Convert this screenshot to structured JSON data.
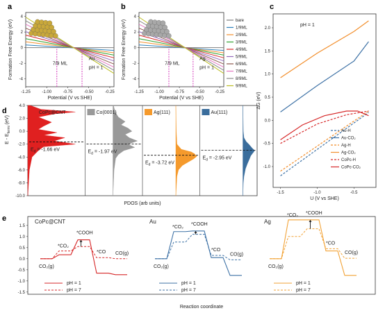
{
  "panels": {
    "a": {
      "letter": "a",
      "metal": "Au",
      "ph": "pH = 1",
      "ml": "7/9 ML"
    },
    "b": {
      "letter": "b",
      "metal": "Ag",
      "ph": "pH = 1",
      "ml": "7/9 ML"
    },
    "c": {
      "letter": "c",
      "ph": "pH = 1"
    },
    "d": {
      "letter": "d"
    },
    "e": {
      "letter": "e"
    }
  },
  "colors": {
    "au_sphere": "#c9a83a",
    "ag_sphere": "#a8a8a8",
    "dashed_marker": "#d63fbd",
    "d_cnt": "#e02020",
    "d_co": "#999999",
    "d_ag": "#f59a2c",
    "d_au": "#3a6d9c",
    "e_cnt": "#d62728",
    "e_au": "#3e72a6",
    "e_ag": "#f2a235"
  },
  "chart_data": [
    {
      "id": "a",
      "type": "line",
      "xlabel": "Potential (V vs SHE)",
      "ylabel": "Formation Free Energy (eV)",
      "xlim": [
        -1.25,
        -0.2
      ],
      "ylim": [
        -5,
        4.5
      ],
      "xticks": [
        "-1.25",
        "-1.00",
        "-0.75",
        "-0.50",
        "-0.25"
      ],
      "yticks": [
        "-4",
        "-2",
        "0",
        "2",
        "4"
      ],
      "dashed_x": [
        -0.88,
        -0.58
      ],
      "series": [
        {
          "name": "bare",
          "color": "#7f7f7f",
          "y": [
            0,
            0
          ]
        },
        {
          "name": "1/9ML",
          "color": "#2a7fba",
          "y": [
            0.35,
            -0.35
          ]
        },
        {
          "name": "2/9ML",
          "color": "#f28e2b",
          "y": [
            0.75,
            -0.65
          ]
        },
        {
          "name": "3/9ML",
          "color": "#2ca02c",
          "y": [
            1.15,
            -0.95
          ]
        },
        {
          "name": "4/9ML",
          "color": "#d62728",
          "y": [
            1.6,
            -1.3
          ]
        },
        {
          "name": "5/9ML",
          "color": "#9467bd",
          "y": [
            2.05,
            -1.7
          ]
        },
        {
          "name": "6/9ML",
          "color": "#8c564b",
          "y": [
            2.5,
            -2.1
          ]
        },
        {
          "name": "7/9ML",
          "color": "#e377c2",
          "y": [
            3.0,
            -2.5
          ]
        },
        {
          "name": "8/9ML",
          "color": "#8a8a8a",
          "y": [
            3.45,
            -2.9
          ]
        },
        {
          "name": "9/9ML",
          "color": "#bcbd22",
          "y": [
            3.9,
            -3.3
          ]
        }
      ]
    },
    {
      "id": "b",
      "type": "line",
      "xlabel": "Potential (V vs SHE)",
      "ylabel": "Formation Free Energy (eV)",
      "xlim": [
        -1.25,
        -0.2
      ],
      "ylim": [
        -5,
        4.5
      ],
      "xticks": [
        "-1.25",
        "-1.00",
        "-0.75",
        "-0.50",
        "-0.25"
      ],
      "yticks": [
        "-4",
        "-2",
        "0",
        "2",
        "4"
      ],
      "dashed_x": [
        -0.88,
        -0.58
      ],
      "legend": [
        "bare",
        "1/9ML",
        "2/9ML",
        "3/9ML",
        "4/9ML",
        "5/9ML",
        "6/9ML",
        "7/9ML",
        "8/9ML",
        "9/9ML"
      ],
      "series": [
        {
          "name": "bare",
          "color": "#7f7f7f",
          "y": [
            0,
            0
          ]
        },
        {
          "name": "1/9ML",
          "color": "#2a7fba",
          "y": [
            0.35,
            -0.35
          ]
        },
        {
          "name": "2/9ML",
          "color": "#f28e2b",
          "y": [
            0.75,
            -0.65
          ]
        },
        {
          "name": "3/9ML",
          "color": "#2ca02c",
          "y": [
            1.15,
            -0.95
          ]
        },
        {
          "name": "4/9ML",
          "color": "#d62728",
          "y": [
            1.6,
            -1.3
          ]
        },
        {
          "name": "5/9ML",
          "color": "#9467bd",
          "y": [
            2.05,
            -1.7
          ]
        },
        {
          "name": "6/9ML",
          "color": "#8c564b",
          "y": [
            2.5,
            -2.1
          ]
        },
        {
          "name": "7/9ML",
          "color": "#e377c2",
          "y": [
            3.0,
            -2.5
          ]
        },
        {
          "name": "8/9ML",
          "color": "#8a8a8a",
          "y": [
            3.45,
            -2.9
          ]
        },
        {
          "name": "9/9ML",
          "color": "#bcbd22",
          "y": [
            3.9,
            -3.3
          ]
        }
      ]
    },
    {
      "id": "c",
      "type": "line",
      "xlabel": "U (V vs SHE)",
      "ylabel": "ΔG (eV)",
      "xlim": [
        -1.6,
        -0.2
      ],
      "ylim": [
        -1.45,
        2.3
      ],
      "xticks": [
        "-1.5",
        "-1.0",
        "-0.5"
      ],
      "xtick_values": [
        -1.5,
        -1.0,
        -0.5
      ],
      "yticks": [
        "-1.0",
        "-0.5",
        "0.0",
        "0.5",
        "1.0",
        "1.5",
        "2.0"
      ],
      "ytick_values": [
        -1.0,
        -0.5,
        0.0,
        0.5,
        1.0,
        1.5,
        2.0
      ],
      "legend": [
        {
          "label": "Au-H",
          "color": "#3e72a6",
          "dash": true
        },
        {
          "label": "Au-CO₂",
          "color": "#3e72a6",
          "dash": false
        },
        {
          "label": "Ag-H",
          "color": "#f28e2b",
          "dash": true
        },
        {
          "label": "Ag-CO₂",
          "color": "#f28e2b",
          "dash": false
        },
        {
          "label": "CoPc-H",
          "color": "#d62728",
          "dash": true
        },
        {
          "label": "CoPc-CO₂",
          "color": "#d62728",
          "dash": false
        }
      ],
      "series": [
        {
          "name": "Au-H",
          "color": "#3e72a6",
          "dash": true,
          "points": [
            [
              -1.5,
              -1.2
            ],
            [
              -0.3,
              0.17
            ]
          ]
        },
        {
          "name": "Au-CO₂",
          "color": "#3e72a6",
          "dash": false,
          "points": [
            [
              -1.5,
              0.18
            ],
            [
              -1.0,
              0.75
            ],
            [
              -0.5,
              1.28
            ],
            [
              -0.3,
              1.7
            ]
          ]
        },
        {
          "name": "Ag-H",
          "color": "#f28e2b",
          "dash": true,
          "points": [
            [
              -1.5,
              -1.1
            ],
            [
              -0.3,
              0.2
            ]
          ]
        },
        {
          "name": "Ag-CO₂",
          "color": "#f28e2b",
          "dash": false,
          "points": [
            [
              -1.5,
              0.92
            ],
            [
              -1.0,
              1.45
            ],
            [
              -0.5,
              1.92
            ],
            [
              -0.3,
              2.15
            ]
          ]
        },
        {
          "name": "CoPc-H",
          "color": "#d62728",
          "dash": true,
          "points": [
            [
              -1.5,
              -0.5
            ],
            [
              -1.0,
              -0.08
            ],
            [
              -0.6,
              0.12
            ],
            [
              -0.3,
              0.2
            ]
          ]
        },
        {
          "name": "CoPc-CO₂",
          "color": "#d62728",
          "dash": false,
          "points": [
            [
              -1.5,
              -0.42
            ],
            [
              -1.2,
              -0.1
            ],
            [
              -0.9,
              0.1
            ],
            [
              -0.6,
              0.2
            ],
            [
              -0.45,
              0.2
            ],
            [
              -0.3,
              0.1
            ]
          ]
        }
      ]
    },
    {
      "id": "d",
      "type": "area",
      "xlabel": "PDOS (arb units)",
      "ylabel": "E - E_fermi (eV)",
      "ylabel_main": "E - E",
      "ylabel_sub": "fermi",
      "ylabel_tail": " (eV)",
      "ylim": [
        -10,
        4
      ],
      "yticks": [
        "4.0",
        "2.0",
        "0.0",
        "-2.0",
        "-4.0",
        "-6.0",
        "-8.0",
        "-10.0"
      ],
      "ytick_values": [
        4,
        2,
        0,
        -2,
        -4,
        -6,
        -8,
        -10
      ],
      "sections": [
        {
          "label": "CoPc@CNT",
          "color": "#e02020",
          "ed_value": -1.66,
          "ed_label_pre": "E",
          "ed_label_sub": "d",
          "ed_label_post": " = -1.66 eV",
          "profile": [
            [
              4,
              0.05
            ],
            [
              3.4,
              0.25
            ],
            [
              3.0,
              0.9
            ],
            [
              2.7,
              0.5
            ],
            [
              2.2,
              0.2
            ],
            [
              1.4,
              0.45
            ],
            [
              0.8,
              0.3
            ],
            [
              0.3,
              0.2
            ],
            [
              -0.2,
              0.55
            ],
            [
              -0.6,
              0.3
            ],
            [
              -1.0,
              0.7
            ],
            [
              -1.5,
              0.5
            ],
            [
              -2.0,
              0.9
            ],
            [
              -2.4,
              0.3
            ],
            [
              -3.0,
              0.2
            ],
            [
              -4.0,
              0.08
            ],
            [
              -6,
              0.03
            ],
            [
              -10,
              0.0
            ]
          ]
        },
        {
          "label": "Co(0001)",
          "color": "#999999",
          "ed_value": -1.97,
          "ed_label_pre": "E",
          "ed_label_sub": "d",
          "ed_label_post": " = -1.97 eV",
          "profile": [
            [
              4,
              0.02
            ],
            [
              3.0,
              0.08
            ],
            [
              2.2,
              0.2
            ],
            [
              1.5,
              0.45
            ],
            [
              1.0,
              0.3
            ],
            [
              0.5,
              0.55
            ],
            [
              0.0,
              0.7
            ],
            [
              -0.5,
              0.45
            ],
            [
              -1.0,
              0.6
            ],
            [
              -1.5,
              0.9
            ],
            [
              -2.0,
              0.55
            ],
            [
              -2.5,
              0.8
            ],
            [
              -3.0,
              0.4
            ],
            [
              -3.6,
              0.2
            ],
            [
              -4.2,
              0.1
            ],
            [
              -6,
              0.04
            ],
            [
              -10,
              0.0
            ]
          ]
        },
        {
          "label": "Ag(111)",
          "color": "#f59a2c",
          "ed_value": -3.72,
          "ed_label_pre": "E",
          "ed_label_sub": "d",
          "ed_label_post": " = -3.72 eV",
          "profile": [
            [
              4,
              0.0
            ],
            [
              0,
              0.02
            ],
            [
              -2.0,
              0.05
            ],
            [
              -2.8,
              0.25
            ],
            [
              -3.2,
              0.7
            ],
            [
              -3.5,
              0.85
            ],
            [
              -3.9,
              0.95
            ],
            [
              -4.3,
              0.8
            ],
            [
              -4.8,
              0.55
            ],
            [
              -5.3,
              0.3
            ],
            [
              -6.0,
              0.12
            ],
            [
              -7.0,
              0.05
            ],
            [
              -10,
              0.0
            ]
          ]
        },
        {
          "label": "Au(111)",
          "color": "#3a6d9c",
          "ed_value": -2.95,
          "ed_label_pre": "E",
          "ed_label_sub": "d",
          "ed_label_post": " = -2.95 eV",
          "profile": [
            [
              4,
              0.0
            ],
            [
              0,
              0.03
            ],
            [
              -1.0,
              0.08
            ],
            [
              -1.6,
              0.25
            ],
            [
              -2.0,
              0.45
            ],
            [
              -2.6,
              0.7
            ],
            [
              -3.0,
              0.9
            ],
            [
              -3.4,
              0.75
            ],
            [
              -3.8,
              0.6
            ],
            [
              -4.3,
              0.5
            ],
            [
              -5.0,
              0.35
            ],
            [
              -5.8,
              0.2
            ],
            [
              -7.0,
              0.08
            ],
            [
              -8.0,
              0.03
            ],
            [
              -10,
              0.0
            ]
          ]
        }
      ]
    },
    {
      "id": "e",
      "type": "line",
      "xlabel": "Reaction coordinate",
      "ylim": [
        -1.6,
        1.9
      ],
      "yticks": [
        "1.5",
        "1.0",
        "0.5",
        "0.0",
        "-0.5",
        "-1.0",
        "-1.5"
      ],
      "ytick_values": [
        1.5,
        1.0,
        0.5,
        0.0,
        -0.5,
        -1.0,
        -1.5
      ],
      "species_labels": {
        "co2": "CO₂(g)",
        "co2ads": "*CO₂",
        "cooh": "*COOH",
        "co": "*CO",
        "cog": "CO(g)"
      },
      "legend_ph1": "pH = 1",
      "legend_ph7": "pH = 7",
      "sections": [
        {
          "label": "CoPc@CNT",
          "color": "#d62728",
          "ph1": [
            0.0,
            0.18,
            0.85,
            -0.65,
            -0.72
          ],
          "ph7": [
            0.0,
            0.35,
            0.55,
            0.05,
            0.0
          ]
        },
        {
          "label": "Au",
          "color": "#3e72a6",
          "ph1": [
            0.0,
            1.22,
            1.25,
            0.05,
            -0.75
          ],
          "ph7": [
            0.0,
            0.75,
            1.1,
            0.15,
            -0.05
          ]
        },
        {
          "label": "Ag",
          "color": "#f2a235",
          "ph1": [
            0.0,
            1.75,
            1.75,
            0.35,
            -0.75
          ],
          "ph7": [
            0.0,
            1.0,
            1.35,
            0.45,
            0.02
          ]
        }
      ]
    }
  ]
}
